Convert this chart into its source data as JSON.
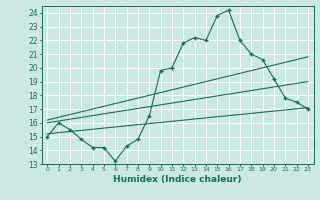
{
  "title": "",
  "xlabel": "Humidex (Indice chaleur)",
  "bg_color": "#cce8e4",
  "grid_color": "#ffffff",
  "line_color": "#1a6b5a",
  "xlim": [
    -0.5,
    23.5
  ],
  "ylim": [
    13,
    24.5
  ],
  "xticks": [
    0,
    1,
    2,
    3,
    4,
    5,
    6,
    7,
    8,
    9,
    10,
    11,
    12,
    13,
    14,
    15,
    16,
    17,
    18,
    19,
    20,
    21,
    22,
    23
  ],
  "yticks": [
    13,
    14,
    15,
    16,
    17,
    18,
    19,
    20,
    21,
    22,
    23,
    24
  ],
  "line1_x": [
    0,
    1,
    2,
    3,
    4,
    5,
    6,
    7,
    8,
    9,
    10,
    11,
    12,
    13,
    14,
    15,
    16,
    17,
    18,
    19,
    20,
    21,
    22,
    23
  ],
  "line1_y": [
    15,
    16,
    15.5,
    14.8,
    14.2,
    14.2,
    13.2,
    14.3,
    14.8,
    16.5,
    19.8,
    20,
    21.8,
    22.2,
    22,
    23.8,
    24.2,
    22,
    21,
    20.6,
    19.2,
    17.8,
    17.5,
    17
  ],
  "line2_x": [
    0,
    23
  ],
  "line2_y": [
    15.2,
    17.1
  ],
  "line3_x": [
    0,
    23
  ],
  "line3_y": [
    16.0,
    19.0
  ],
  "line4_x": [
    0,
    23
  ],
  "line4_y": [
    16.2,
    20.8
  ]
}
